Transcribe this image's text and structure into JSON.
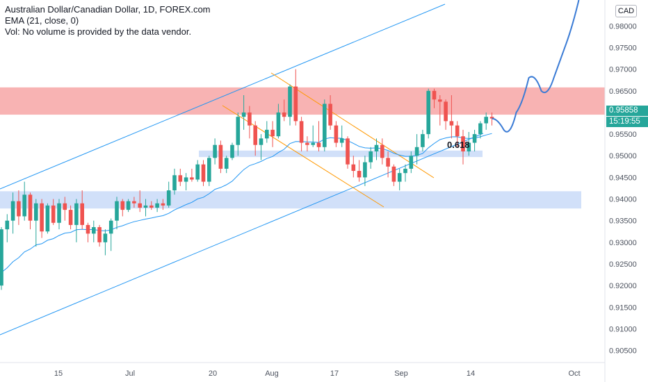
{
  "legend": {
    "title": "Australian Dollar/Canadian Dollar, 1D, FOREX.com",
    "ema": "EMA (21, close, 0)",
    "vol": "Vol: No volume is provided by the data vendor."
  },
  "currency": "CAD",
  "last_price": "0.95858",
  "countdown": "15:19:55",
  "fib_label": "0.618",
  "colors": {
    "up": "#26a69a",
    "down": "#ef5350",
    "ema": "#2196f3",
    "channel": "#2196f3",
    "down_channel": "#ff9800",
    "resistance_zone": "#f7a6a6",
    "support_zone": "#c9daf8"
  },
  "chart_data": {
    "type": "candlestick",
    "x_ticks": [
      "15",
      "Jul",
      "20",
      "Aug",
      "17",
      "Sep",
      "14",
      "Oct"
    ],
    "y_ticks": [
      "0.98000",
      "0.97500",
      "0.97000",
      "0.96500",
      "0.96000",
      "0.95500",
      "0.95000",
      "0.94500",
      "0.94000",
      "0.93500",
      "0.93000",
      "0.92500",
      "0.92000",
      "0.91500",
      "0.91000",
      "0.90500"
    ],
    "ylim": [
      0.9022,
      0.986
    ],
    "zones": [
      {
        "name": "resistance",
        "from": 0.9595,
        "to": 0.9658
      },
      {
        "name": "fib-0.618",
        "from": 0.9497,
        "to": 0.9512
      },
      {
        "name": "support",
        "from": 0.9378,
        "to": 0.9418
      }
    ],
    "candles": [
      [
        0.92,
        0.9335,
        0.919,
        0.933
      ],
      [
        0.933,
        0.9365,
        0.93,
        0.935
      ],
      [
        0.935,
        0.9415,
        0.932,
        0.9395
      ],
      [
        0.9395,
        0.942,
        0.934,
        0.936
      ],
      [
        0.936,
        0.944,
        0.935,
        0.941
      ],
      [
        0.941,
        0.9415,
        0.933,
        0.935
      ],
      [
        0.935,
        0.94,
        0.929,
        0.939
      ],
      [
        0.939,
        0.94,
        0.931,
        0.9325
      ],
      [
        0.9325,
        0.939,
        0.932,
        0.9385
      ],
      [
        0.9385,
        0.94,
        0.934,
        0.9345
      ],
      [
        0.9345,
        0.94,
        0.933,
        0.939
      ],
      [
        0.939,
        0.9405,
        0.935,
        0.9375
      ],
      [
        0.9375,
        0.9385,
        0.933,
        0.934
      ],
      [
        0.934,
        0.94,
        0.93,
        0.939
      ],
      [
        0.939,
        0.942,
        0.933,
        0.934
      ],
      [
        0.934,
        0.9345,
        0.93,
        0.932
      ],
      [
        0.932,
        0.935,
        0.93,
        0.9335
      ],
      [
        0.9335,
        0.934,
        0.929,
        0.93
      ],
      [
        0.93,
        0.933,
        0.927,
        0.932
      ],
      [
        0.932,
        0.9355,
        0.928,
        0.935
      ],
      [
        0.935,
        0.9405,
        0.933,
        0.9395
      ],
      [
        0.9395,
        0.94,
        0.936,
        0.9375
      ],
      [
        0.9375,
        0.94,
        0.937,
        0.9395
      ],
      [
        0.9395,
        0.9405,
        0.938,
        0.939
      ],
      [
        0.939,
        0.942,
        0.937,
        0.938
      ],
      [
        0.938,
        0.94,
        0.936,
        0.9385
      ],
      [
        0.9385,
        0.9395,
        0.9375,
        0.938
      ],
      [
        0.938,
        0.94,
        0.937,
        0.939
      ],
      [
        0.939,
        0.94,
        0.9375,
        0.9385
      ],
      [
        0.9385,
        0.944,
        0.938,
        0.942
      ],
      [
        0.942,
        0.947,
        0.941,
        0.9455
      ],
      [
        0.9455,
        0.947,
        0.943,
        0.944
      ],
      [
        0.944,
        0.946,
        0.942,
        0.945
      ],
      [
        0.945,
        0.947,
        0.944,
        0.9445
      ],
      [
        0.9445,
        0.949,
        0.944,
        0.948
      ],
      [
        0.948,
        0.949,
        0.943,
        0.944
      ],
      [
        0.944,
        0.95,
        0.943,
        0.9495
      ],
      [
        0.9495,
        0.954,
        0.948,
        0.9525
      ],
      [
        0.9525,
        0.9535,
        0.946,
        0.947
      ],
      [
        0.947,
        0.95,
        0.946,
        0.9495
      ],
      [
        0.9495,
        0.953,
        0.949,
        0.9525
      ],
      [
        0.9525,
        0.96,
        0.95,
        0.959
      ],
      [
        0.959,
        0.964,
        0.956,
        0.96
      ],
      [
        0.96,
        0.9615,
        0.954,
        0.957
      ],
      [
        0.957,
        0.958,
        0.95,
        0.9525
      ],
      [
        0.9525,
        0.955,
        0.949,
        0.954
      ],
      [
        0.954,
        0.958,
        0.953,
        0.956
      ],
      [
        0.956,
        0.958,
        0.952,
        0.9545
      ],
      [
        0.9545,
        0.962,
        0.954,
        0.96
      ],
      [
        0.96,
        0.963,
        0.958,
        0.959
      ],
      [
        0.959,
        0.9665,
        0.957,
        0.966
      ],
      [
        0.966,
        0.97,
        0.957,
        0.958
      ],
      [
        0.958,
        0.959,
        0.951,
        0.953
      ],
      [
        0.953,
        0.9545,
        0.951,
        0.9525
      ],
      [
        0.9525,
        0.957,
        0.952,
        0.953
      ],
      [
        0.953,
        0.958,
        0.951,
        0.952
      ],
      [
        0.952,
        0.963,
        0.951,
        0.962
      ],
      [
        0.962,
        0.964,
        0.956,
        0.957
      ],
      [
        0.957,
        0.958,
        0.952,
        0.953
      ],
      [
        0.953,
        0.957,
        0.952,
        0.954
      ],
      [
        0.954,
        0.9545,
        0.947,
        0.948
      ],
      [
        0.948,
        0.95,
        0.945,
        0.9465
      ],
      [
        0.9465,
        0.949,
        0.944,
        0.945
      ],
      [
        0.945,
        0.95,
        0.943,
        0.9485
      ],
      [
        0.9485,
        0.952,
        0.947,
        0.951
      ],
      [
        0.951,
        0.954,
        0.949,
        0.9525
      ],
      [
        0.9525,
        0.954,
        0.948,
        0.9495
      ],
      [
        0.9495,
        0.951,
        0.945,
        0.9475
      ],
      [
        0.9475,
        0.948,
        0.943,
        0.944
      ],
      [
        0.944,
        0.947,
        0.942,
        0.946
      ],
      [
        0.946,
        0.948,
        0.944,
        0.947
      ],
      [
        0.947,
        0.951,
        0.946,
        0.95
      ],
      [
        0.95,
        0.955,
        0.948,
        0.952
      ],
      [
        0.952,
        0.956,
        0.951,
        0.955
      ],
      [
        0.955,
        0.9655,
        0.954,
        0.965
      ],
      [
        0.965,
        0.9655,
        0.961,
        0.963
      ],
      [
        0.963,
        0.964,
        0.957,
        0.9625
      ],
      [
        0.9625,
        0.963,
        0.956,
        0.958
      ],
      [
        0.958,
        0.964,
        0.954,
        0.957
      ],
      [
        0.957,
        0.958,
        0.952,
        0.9545
      ],
      [
        0.9545,
        0.956,
        0.948,
        0.951
      ],
      [
        0.951,
        0.9555,
        0.95,
        0.953
      ],
      [
        0.953,
        0.956,
        0.951,
        0.955
      ],
      [
        0.955,
        0.958,
        0.954,
        0.9575
      ],
      [
        0.9575,
        0.96,
        0.956,
        0.959
      ],
      [
        0.959,
        0.96,
        0.957,
        0.9586
      ]
    ],
    "projection": [
      [
        0.9586,
        0.956
      ],
      [
        0.9541,
        0.96
      ],
      [
        0.962,
        0.968
      ],
      [
        0.9692,
        0.965
      ],
      [
        0.9635,
        0.968
      ],
      [
        0.972,
        0.976
      ],
      [
        0.98,
        0.986
      ]
    ]
  }
}
